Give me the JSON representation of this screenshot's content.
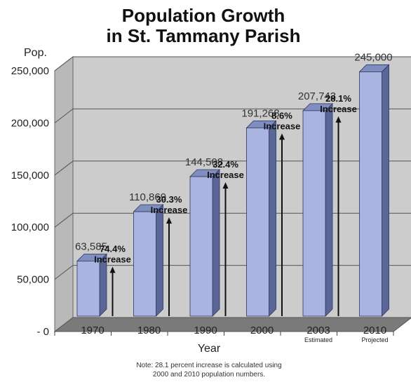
{
  "chart_data": {
    "type": "bar",
    "title_lines": [
      "Population Growth",
      "in St. Tammany Parish"
    ],
    "ylabel": "Pop.",
    "xlabel": "Year",
    "ylim": [
      0,
      250000
    ],
    "yticks": [
      {
        "value": 0,
        "label": "- 0"
      },
      {
        "value": 50000,
        "label": "50,000"
      },
      {
        "value": 100000,
        "label": "100,000"
      },
      {
        "value": 150000,
        "label": "150,000"
      },
      {
        "value": 200000,
        "label": "200,000"
      },
      {
        "value": 250000,
        "label": "250,000"
      }
    ],
    "grid": true,
    "categories": [
      "1970",
      "1980",
      "1990",
      "2000",
      "2003",
      "2010"
    ],
    "category_sublabels": [
      "",
      "",
      "",
      "",
      "Estimated",
      "Projected"
    ],
    "values": [
      63585,
      110869,
      144508,
      191268,
      207743,
      245000
    ],
    "value_labels": [
      "63,585",
      "110,869",
      "144,508",
      "191,268",
      "207,743",
      "245,000"
    ],
    "annotations": [
      {
        "between": [
          0,
          1
        ],
        "pct": "74.4%",
        "word": "Increase"
      },
      {
        "between": [
          1,
          2
        ],
        "pct": "30.3%",
        "word": "Increase"
      },
      {
        "between": [
          2,
          3
        ],
        "pct": "32.4%",
        "word": "Increase"
      },
      {
        "between": [
          3,
          4
        ],
        "pct": "8.6%",
        "word": "Increase"
      },
      {
        "between": [
          4,
          5
        ],
        "pct": "28.1%",
        "word": "Increase"
      }
    ],
    "note_lines": [
      "Note: 28.1 percent increase is calculated using",
      "2000 and 2010 population numbers."
    ],
    "colors": {
      "bar_front": "#a9b5e0",
      "bar_side": "#5a6696",
      "bar_top": "#7f8ebf",
      "wall": "#cccccc",
      "floor": "#7a7a7a",
      "grid": "#555555"
    }
  }
}
